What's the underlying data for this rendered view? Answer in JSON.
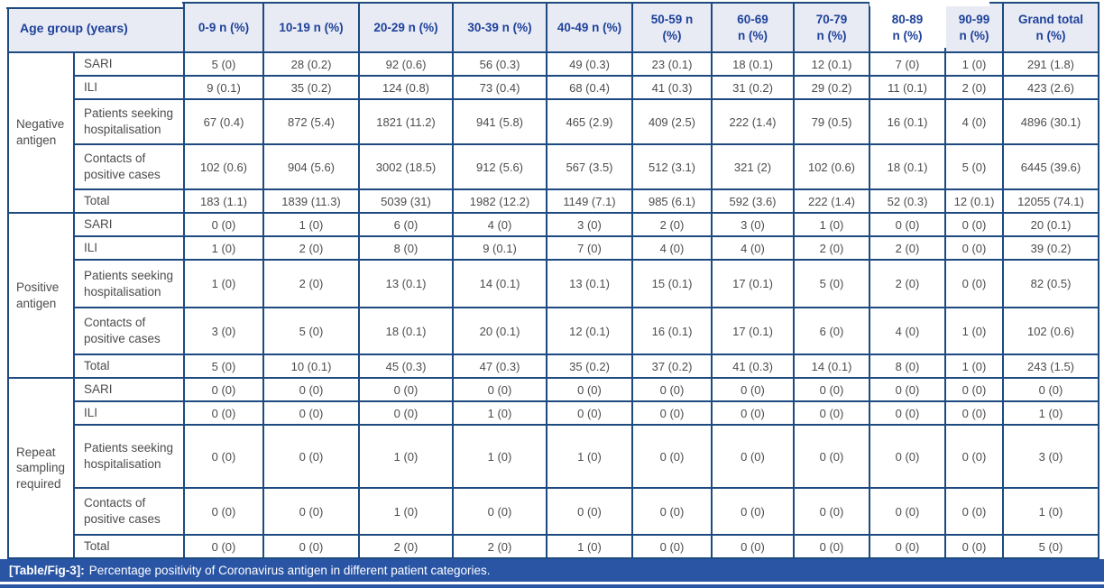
{
  "table": {
    "corner_header": "Age group (years)",
    "columns": [
      "0-9 n (%)",
      "10-19 n (%)",
      "20-29 n (%)",
      "30-39 n (%)",
      "40-49 n (%)",
      "50-59 n\n(%)",
      "60-69\nn (%)",
      "70-79\nn (%)",
      "80-89\nn (%)",
      "90-99\nn (%)",
      "Grand total\nn (%)"
    ],
    "groups": [
      {
        "label": "Negative antigen",
        "rows": [
          {
            "label": "SARI",
            "values": [
              "5 (0)",
              "28 (0.2)",
              "92 (0.6)",
              "56 (0.3)",
              "49 (0.3)",
              "23 (0.1)",
              "18 (0.1)",
              "12 (0.1)",
              "7 (0)",
              "1 (0)",
              "291 (1.8)"
            ]
          },
          {
            "label": "ILI",
            "values": [
              "9 (0.1)",
              "35 (0.2)",
              "124 (0.8)",
              "73 (0.4)",
              "68 (0.4)",
              "41 (0.3)",
              "31 (0.2)",
              "29 (0.2)",
              "11 (0.1)",
              "2 (0)",
              "423 (2.6)"
            ]
          },
          {
            "label": "Patients seeking hospitalisation",
            "values": [
              "67 (0.4)",
              "872 (5.4)",
              "1821 (11.2)",
              "941 (5.8)",
              "465 (2.9)",
              "409 (2.5)",
              "222 (1.4)",
              "79 (0.5)",
              "16 (0.1)",
              "4 (0)",
              "4896 (30.1)"
            ]
          },
          {
            "label": "Contacts of positive cases",
            "values": [
              "102 (0.6)",
              "904 (5.6)",
              "3002 (18.5)",
              "912 (5.6)",
              "567 (3.5)",
              "512 (3.1)",
              "321 (2)",
              "102 (0.6)",
              "18 (0.1)",
              "5 (0)",
              "6445 (39.6)"
            ]
          },
          {
            "label": "Total",
            "values": [
              "183 (1.1)",
              "1839 (11.3)",
              "5039 (31)",
              "1982 (12.2)",
              "1149 (7.1)",
              "985 (6.1)",
              "592 (3.6)",
              "222 (1.4)",
              "52 (0.3)",
              "12 (0.1)",
              "12055 (74.1)"
            ]
          }
        ]
      },
      {
        "label": "Positive antigen",
        "rows": [
          {
            "label": "SARI",
            "values": [
              "0 (0)",
              "1 (0)",
              "6 (0)",
              "4 (0)",
              "3 (0)",
              "2 (0)",
              "3 (0)",
              "1 (0)",
              "0 (0)",
              "0 (0)",
              "20 (0.1)"
            ]
          },
          {
            "label": "ILI",
            "values": [
              "1 (0)",
              "2 (0)",
              "8 (0)",
              "9 (0.1)",
              "7 (0)",
              "4 (0)",
              "4 (0)",
              "2 (0)",
              "2 (0)",
              "0 (0)",
              "39 (0.2)"
            ]
          },
          {
            "label": "Patients seeking hospitalisation",
            "values": [
              "1 (0)",
              "2 (0)",
              "13 (0.1)",
              "14 (0.1)",
              "13 (0.1)",
              "15 (0.1)",
              "17 (0.1)",
              "5 (0)",
              "2 (0)",
              "0 (0)",
              "82 (0.5)"
            ]
          },
          {
            "label": "Contacts of positive cases",
            "values": [
              "3 (0)",
              "5 (0)",
              "18 (0.1)",
              "20 (0.1)",
              "12 (0.1)",
              "16 (0.1)",
              "17 (0.1)",
              "6 (0)",
              "4 (0)",
              "1 (0)",
              "102 (0.6)"
            ]
          },
          {
            "label": "Total",
            "values": [
              "5 (0)",
              "10 (0.1)",
              "45 (0.3)",
              "47 (0.3)",
              "35 (0.2)",
              "37 (0.2)",
              "41 (0.3)",
              "14 (0.1)",
              "8 (0)",
              "1 (0)",
              "243 (1.5)"
            ]
          }
        ]
      },
      {
        "label": "Repeat sampling required",
        "rows": [
          {
            "label": "SARI",
            "values": [
              "0 (0)",
              "0 (0)",
              "0 (0)",
              "0 (0)",
              "0 (0)",
              "0 (0)",
              "0 (0)",
              "0 (0)",
              "0 (0)",
              "0 (0)",
              "0 (0)"
            ]
          },
          {
            "label": "ILI",
            "values": [
              "0 (0)",
              "0 (0)",
              "0 (0)",
              "1 (0)",
              "0 (0)",
              "0 (0)",
              "0 (0)",
              "0 (0)",
              "0 (0)",
              "0 (0)",
              "1 (0)"
            ]
          },
          {
            "label": "Patients seeking hospitalisation",
            "values": [
              "0 (0)",
              "0 (0)",
              "1 (0)",
              "1 (0)",
              "1 (0)",
              "0 (0)",
              "0 (0)",
              "0 (0)",
              "0 (0)",
              "0 (0)",
              "3 (0)"
            ]
          },
          {
            "label": "Contacts of positive cases",
            "values": [
              "0 (0)",
              "0 (0)",
              "1 (0)",
              "0 (0)",
              "0 (0)",
              "0 (0)",
              "0 (0)",
              "0 (0)",
              "0 (0)",
              "0 (0)",
              "1 (0)"
            ]
          },
          {
            "label": "Total",
            "values": [
              "0 (0)",
              "0 (0)",
              "2 (0)",
              "2 (0)",
              "1 (0)",
              "0 (0)",
              "0 (0)",
              "0 (0)",
              "0 (0)",
              "0 (0)",
              "5 (0)"
            ]
          }
        ]
      }
    ]
  },
  "caption": {
    "label": "[Table/Fig-3]:",
    "text": "Percentage positivity of Coronavirus antigen in different patient categories."
  },
  "colors": {
    "border": "#1d4a80",
    "header_bg": "#e8ebf4",
    "header_text": "#1e419b",
    "body_text": "#4c4c4c",
    "caption_bg": "#2a55a5",
    "highlight_cell_bg": "#ffffff"
  }
}
